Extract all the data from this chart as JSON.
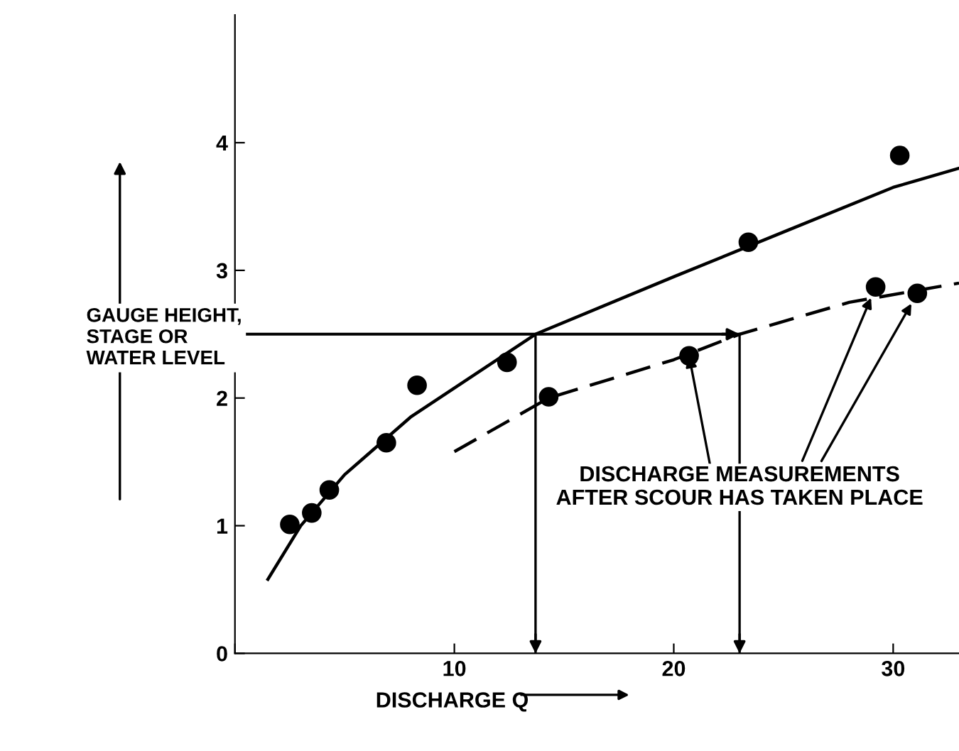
{
  "chart_data": {
    "type": "scatter",
    "xlabel": "DISCHARGE Q",
    "ylabel": "GAUGE HEIGHT,\nSTAGE OR\nWATER LEVEL",
    "series": [
      {
        "type": "line",
        "marker": "none",
        "line_style": "solid",
        "color": "#000000",
        "x": [
          1.5,
          3,
          5,
          8,
          13.7,
          20,
          25,
          30,
          33
        ],
        "values": [
          0.58,
          1.0,
          1.4,
          1.85,
          2.5,
          2.95,
          3.3,
          3.65,
          3.8
        ]
      },
      {
        "type": "line",
        "marker": "none",
        "line_style": "dashed",
        "color": "#000000",
        "x": [
          10,
          14.3,
          20,
          23,
          28,
          33
        ],
        "values": [
          1.58,
          2.0,
          2.3,
          2.5,
          2.75,
          2.9
        ]
      },
      {
        "color": "#000000",
        "x": [
          2.5,
          3.5,
          4.3,
          6.9,
          8.3,
          12.4,
          23.4,
          30.3
        ],
        "values": [
          1.01,
          1.1,
          1.28,
          1.65,
          2.1,
          2.28,
          3.22,
          3.9
        ]
      },
      {
        "color": "#000000",
        "x": [
          14.3,
          20.7,
          29.2,
          31.1
        ],
        "values": [
          2.01,
          2.33,
          2.87,
          2.82
        ]
      }
    ],
    "marker": "circle",
    "xlim": [
      0,
      33
    ],
    "ylim": [
      0,
      5
    ],
    "xticks": [
      {
        "value": 0,
        "label": null
      },
      10,
      20,
      30
    ],
    "yticks": [
      0,
      1,
      2,
      3,
      4
    ],
    "ref_lines": [
      {
        "axis": "y",
        "value": 2.5,
        "label": null,
        "color": "#000000"
      },
      {
        "axis": "x",
        "value": 13.7,
        "label": null,
        "color": "#000000"
      },
      {
        "axis": "x",
        "value": 23,
        "label": null,
        "color": "#000000"
      }
    ],
    "annotations": [
      {
        "text": "DISCHARGE MEASUREMENTS\nAFTER SCOUR HAS TAKEN PLACE",
        "x": 20.7,
        "y": 2.33
      }
    ],
    "grid": false,
    "legend": false
  }
}
